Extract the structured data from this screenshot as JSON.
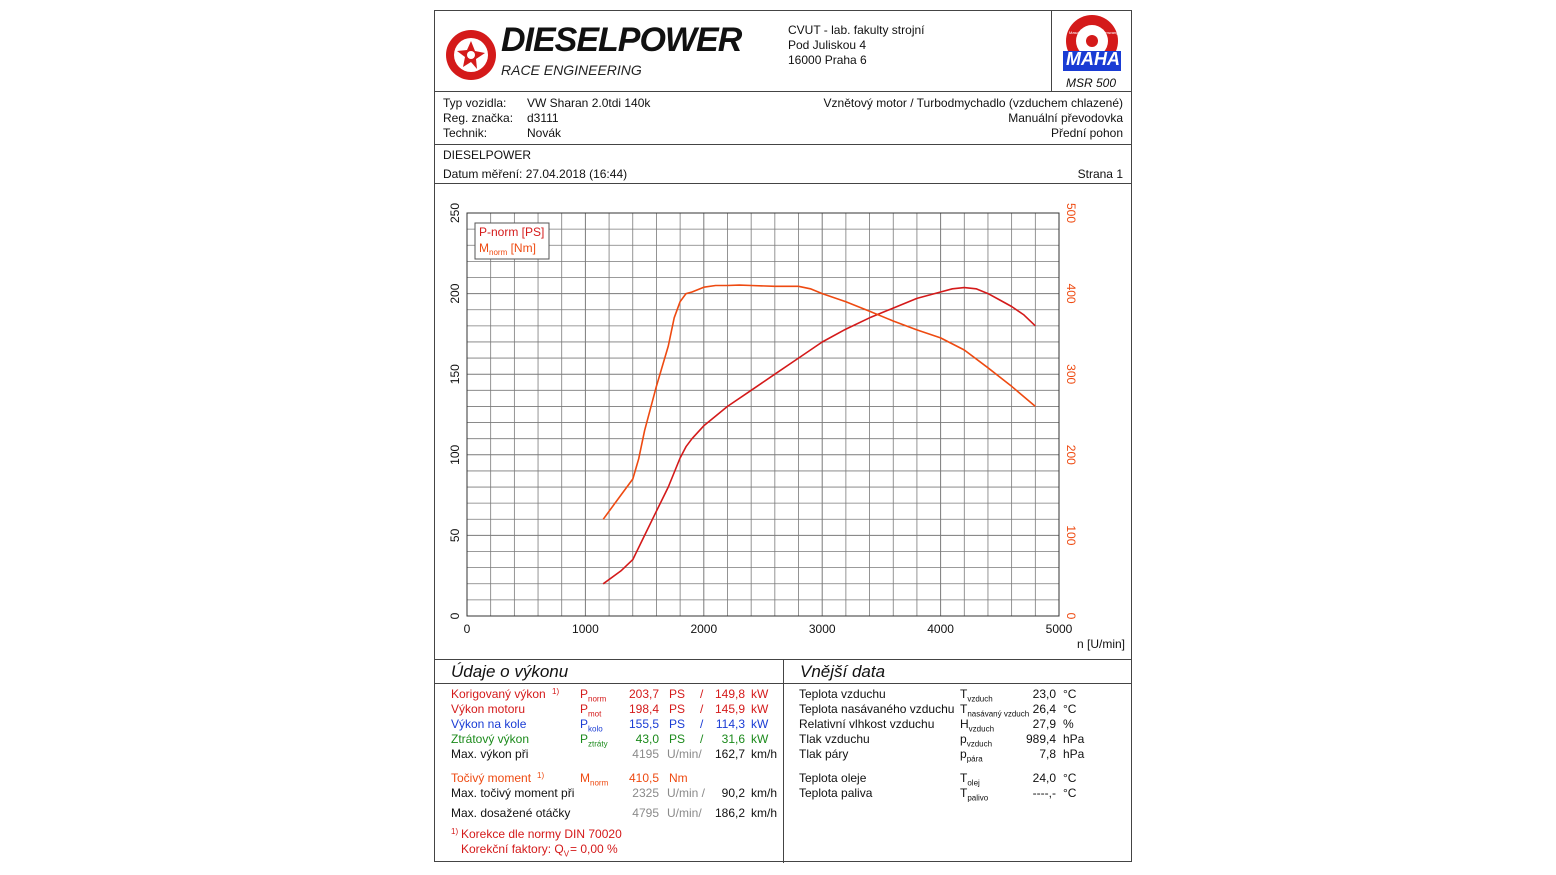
{
  "header": {
    "brand": "DIESELPOWER",
    "brand_sub": "RACE ENGINEERING",
    "address": [
      "CVUT - lab. fakulty strojní",
      "Pod Juliskou 4",
      "16000 Praha 6"
    ],
    "maha_text": "MAHA",
    "maha_ring": "Maschinenbau Haldenwang",
    "device": "MSR 500"
  },
  "vehicle": {
    "type_label": "Typ vozidla:",
    "type_value": "VW Sharan 2.0tdi 140k",
    "reg_label": "Reg. značka:",
    "reg_value": "d3111",
    "tech_label": "Technik:",
    "tech_value": "Novák",
    "engine": "Vznětový motor / Turbodmychadlo (vzduchem chlazené)",
    "gearbox": "Manuální převodovka",
    "drive": "Přední pohon"
  },
  "meta": {
    "customer": "DIESELPOWER",
    "date": "Datum měření: 27.04.2018 (16:44)",
    "page": "Strana 1"
  },
  "chart_data": {
    "type": "line",
    "xlabel": "n [U/min]",
    "xlim": [
      0,
      5000
    ],
    "xticks": [
      0,
      1000,
      2000,
      3000,
      4000,
      5000
    ],
    "y_left": {
      "lim": [
        0,
        250
      ],
      "ticks": [
        0,
        50,
        100,
        150,
        200,
        250
      ]
    },
    "y_right": {
      "lim": [
        0,
        500
      ],
      "ticks": [
        0,
        100,
        200,
        300,
        400,
        500
      ]
    },
    "grid": true,
    "legend_position": "top-left",
    "series": [
      {
        "name": "P-norm [PS]",
        "axis": "left",
        "color": "#d41a1a",
        "x": [
          1150,
          1300,
          1400,
          1500,
          1600,
          1700,
          1800,
          1850,
          1900,
          2000,
          2100,
          2200,
          2400,
          2600,
          2800,
          3000,
          3200,
          3400,
          3600,
          3800,
          4000,
          4100,
          4200,
          4300,
          4400,
          4500,
          4600,
          4700,
          4800
        ],
        "y": [
          20,
          28,
          35,
          50,
          65,
          80,
          98,
          105,
          110,
          118,
          124,
          130,
          140,
          150,
          160,
          170,
          178,
          185,
          191,
          197,
          201,
          203,
          203.7,
          203,
          200,
          196,
          192,
          187,
          180
        ]
      },
      {
        "name": "M-norm [Nm]",
        "axis": "right",
        "color": "#ee4a11",
        "x": [
          1150,
          1300,
          1400,
          1450,
          1500,
          1600,
          1700,
          1750,
          1800,
          1850,
          1900,
          2000,
          2100,
          2200,
          2300,
          2400,
          2600,
          2800,
          2900,
          3000,
          3200,
          3400,
          3600,
          3800,
          4000,
          4200,
          4400,
          4600,
          4800
        ],
        "y": [
          120,
          150,
          170,
          195,
          230,
          285,
          335,
          370,
          390,
          400,
          402,
          408,
          410,
          410,
          410.5,
          410,
          409,
          409,
          406,
          400,
          390,
          378,
          366,
          355,
          345,
          330,
          308,
          285,
          260
        ]
      }
    ],
    "legend": {
      "p_label": "P-norm [PS]",
      "m_label_main": "M",
      "m_label_sub": "norm",
      "m_label_unit": "[Nm]"
    }
  },
  "performance": {
    "title": "Údaje o výkonu",
    "rows": [
      {
        "label": "Korigovaný výkon",
        "ref": "1)",
        "sym": "P",
        "sub": "norm",
        "ps": "203,7",
        "ps_unit": "PS",
        "sep": "/",
        "kw": "149,8",
        "kw_unit": "kW"
      },
      {
        "label": "Výkon motoru",
        "ref": "",
        "sym": "P",
        "sub": "mot",
        "ps": "198,4",
        "ps_unit": "PS",
        "sep": "/",
        "kw": "145,9",
        "kw_unit": "kW"
      },
      {
        "label": "Výkon na kole",
        "ref": "",
        "sym": "P",
        "sub": "kolo",
        "ps": "155,5",
        "ps_unit": "PS",
        "sep": "/",
        "kw": "114,3",
        "kw_unit": "kW"
      },
      {
        "label": "Ztrátový výkon",
        "ref": "",
        "sym": "P",
        "sub": "ztráty",
        "ps": "43,0",
        "ps_unit": "PS",
        "sep": "/",
        "kw": "31,6",
        "kw_unit": "kW"
      }
    ],
    "maxpow": {
      "label": "Max. výkon při",
      "rpm": "4195",
      "rpm_unit": "U/min/",
      "speed": "162,7",
      "speed_unit": "km/h"
    },
    "torque": {
      "label": "Točivý moment",
      "ref": "1)",
      "sym": "M",
      "sub": "norm",
      "value": "410,5",
      "unit": "Nm"
    },
    "maxtorque": {
      "label": "Max. točivý moment při",
      "rpm": "2325",
      "rpm_unit": "U/min /",
      "speed": "90,2",
      "speed_unit": "km/h"
    },
    "maxrpm": {
      "label": "Max. dosažené otáčky",
      "rpm": "4795",
      "rpm_unit": "U/min/",
      "speed": "186,2",
      "speed_unit": "km/h"
    },
    "note1_ref": "1)",
    "note1": "Korekce dle normy DIN 70020",
    "note2": "Korekční faktory: Q",
    "note2_sub": "V",
    "note2_val": "=   0,00 %"
  },
  "external": {
    "title": "Vnější data",
    "rows": [
      {
        "label": "Teplota vzduchu",
        "sym": "T",
        "sub": "vzduch",
        "value": "23,0",
        "unit": "°C"
      },
      {
        "label": "Teplota nasávaného vzduchu",
        "sym": "T",
        "sub": "nasávaný vzduch",
        "value": "26,4",
        "unit": "°C"
      },
      {
        "label": "Relativní vlhkost vzduchu",
        "sym": "H",
        "sub": "vzduch",
        "value": "27,9",
        "unit": "%"
      },
      {
        "label": "Tlak vzduchu",
        "sym": "p",
        "sub": "vzduch",
        "value": "989,4",
        "unit": "hPa"
      },
      {
        "label": "Tlak páry",
        "sym": "p",
        "sub": "pára",
        "value": "7,8",
        "unit": "hPa"
      },
      {
        "label": "Teplota oleje",
        "sym": "T",
        "sub": "olej",
        "value": "24,0",
        "unit": "°C"
      },
      {
        "label": "Teplota paliva",
        "sym": "T",
        "sub": "palivo",
        "value": "----,-",
        "unit": "°C"
      }
    ]
  },
  "colors": {
    "power": "#d41a1a",
    "torque": "#ee4a11",
    "wheel": "#1a3cd4",
    "loss": "#1b8a1b"
  }
}
